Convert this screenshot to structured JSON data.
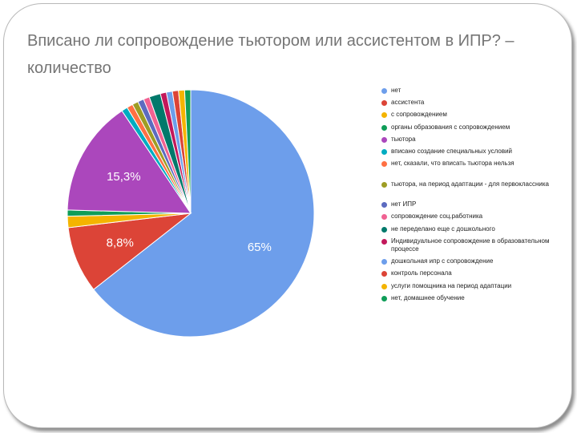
{
  "slide": {
    "title": "Вписано ли сопровождение тьютором или ассистентом в ИПР? – количество"
  },
  "chart_data": {
    "type": "pie",
    "title": "Вписано ли сопровождение тьютором или ассистентом в ИПР? – количество",
    "labels": [
      "нет",
      "ассистента",
      "с сопровождением",
      "органы образования с сопровождением",
      "тьютора",
      "вписано создание специальных условий",
      "нет, сказали, что вписать тьютора нельзя",
      "тьютора, на период адаптации - для первоклассника",
      "нет ИПР",
      "сопровождение соц.работника",
      "не переделано еще с дошкольного",
      "Индивидуальное сопровождение в образовательном процессе",
      "дошкольная ипр с сопровождение",
      "контроль персонала",
      "услуги помощника на период адаптации",
      "нет, домашнее обучение"
    ],
    "values": [
      65,
      8.8,
      1.5,
      0.8,
      15.3,
      0.8,
      0.8,
      0.8,
      0.8,
      0.8,
      1.5,
      0.8,
      0.8,
      0.8,
      0.8,
      0.8
    ],
    "data_labels": [
      "65%",
      "8,8%",
      "",
      "",
      "15,3%",
      "",
      "",
      "",
      "",
      "",
      "",
      "",
      "",
      "",
      "",
      ""
    ],
    "colors": [
      "#6d9eeb",
      "#dc4437",
      "#f4b400",
      "#0f9d58",
      "#ab47bc",
      "#00acc1",
      "#ff7043",
      "#9e9d24",
      "#5c6bc0",
      "#f06292",
      "#00796b",
      "#c2185b",
      "#6d9eeb",
      "#dc4437",
      "#f4b400",
      "#0f9d58"
    ],
    "legend_placement": "right"
  }
}
